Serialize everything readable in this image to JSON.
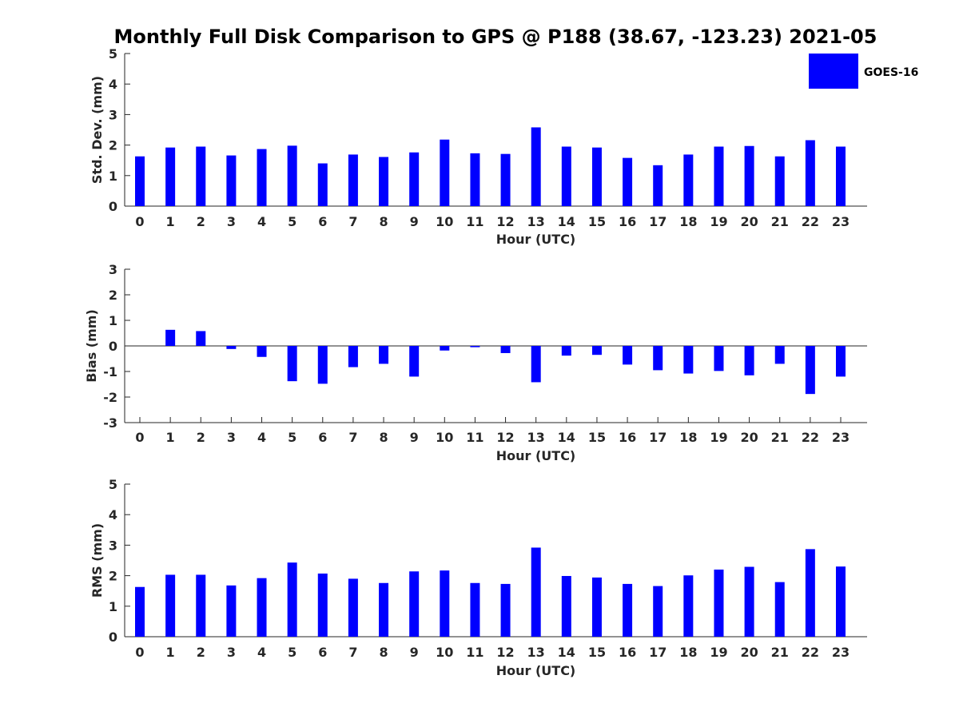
{
  "title": "Monthly Full Disk Comparison to GPS @ P188 (38.67, -123.23) 2021-05",
  "legend": {
    "label": "GOES-16",
    "color": "#0000ff",
    "placement": "top-right"
  },
  "chart_data": [
    {
      "type": "bar",
      "name": "std",
      "xlabel": "Hour (UTC)",
      "ylabel": "Std. Dev. (mm)",
      "ylim": [
        0,
        5
      ],
      "yticks": [
        0,
        1,
        2,
        3,
        4,
        5
      ],
      "categories": [
        "0",
        "1",
        "2",
        "3",
        "4",
        "5",
        "6",
        "7",
        "8",
        "9",
        "10",
        "11",
        "12",
        "13",
        "14",
        "15",
        "16",
        "17",
        "18",
        "19",
        "20",
        "21",
        "22",
        "23"
      ],
      "series": [
        {
          "name": "GOES-16",
          "color": "#0000ff",
          "values": [
            1.63,
            1.92,
            1.95,
            1.66,
            1.87,
            1.98,
            1.4,
            1.69,
            1.61,
            1.76,
            2.18,
            1.73,
            1.71,
            2.58,
            1.95,
            1.92,
            1.58,
            1.34,
            1.69,
            1.95,
            1.97,
            1.63,
            2.16,
            1.95
          ]
        }
      ]
    },
    {
      "type": "bar",
      "name": "bias",
      "xlabel": "Hour (UTC)",
      "ylabel": "Bias (mm)",
      "ylim": [
        -3,
        3
      ],
      "yticks": [
        -3,
        -2,
        -1,
        0,
        1,
        2,
        3
      ],
      "categories": [
        "0",
        "1",
        "2",
        "3",
        "4",
        "5",
        "6",
        "7",
        "8",
        "9",
        "10",
        "11",
        "12",
        "13",
        "14",
        "15",
        "16",
        "17",
        "18",
        "19",
        "20",
        "21",
        "22",
        "23"
      ],
      "series": [
        {
          "name": "GOES-16",
          "color": "#0000ff",
          "values": [
            0.0,
            0.63,
            0.58,
            -0.12,
            -0.43,
            -1.38,
            -1.48,
            -0.83,
            -0.7,
            -1.2,
            -0.18,
            -0.05,
            -0.28,
            -1.42,
            -0.38,
            -0.35,
            -0.73,
            -0.95,
            -1.08,
            -0.98,
            -1.15,
            -0.7,
            -1.88,
            -1.2
          ]
        }
      ]
    },
    {
      "type": "bar",
      "name": "rms",
      "xlabel": "Hour (UTC)",
      "ylabel": "RMS (mm)",
      "ylim": [
        0,
        5
      ],
      "yticks": [
        0,
        1,
        2,
        3,
        4,
        5
      ],
      "categories": [
        "0",
        "1",
        "2",
        "3",
        "4",
        "5",
        "6",
        "7",
        "8",
        "9",
        "10",
        "11",
        "12",
        "13",
        "14",
        "15",
        "16",
        "17",
        "18",
        "19",
        "20",
        "21",
        "22",
        "23"
      ],
      "series": [
        {
          "name": "GOES-16",
          "color": "#0000ff",
          "values": [
            1.63,
            2.03,
            2.03,
            1.68,
            1.92,
            2.43,
            2.07,
            1.9,
            1.76,
            2.14,
            2.17,
            1.76,
            1.73,
            2.92,
            1.99,
            1.94,
            1.73,
            1.66,
            2.01,
            2.2,
            2.29,
            1.79,
            2.87,
            2.3
          ]
        }
      ]
    }
  ]
}
